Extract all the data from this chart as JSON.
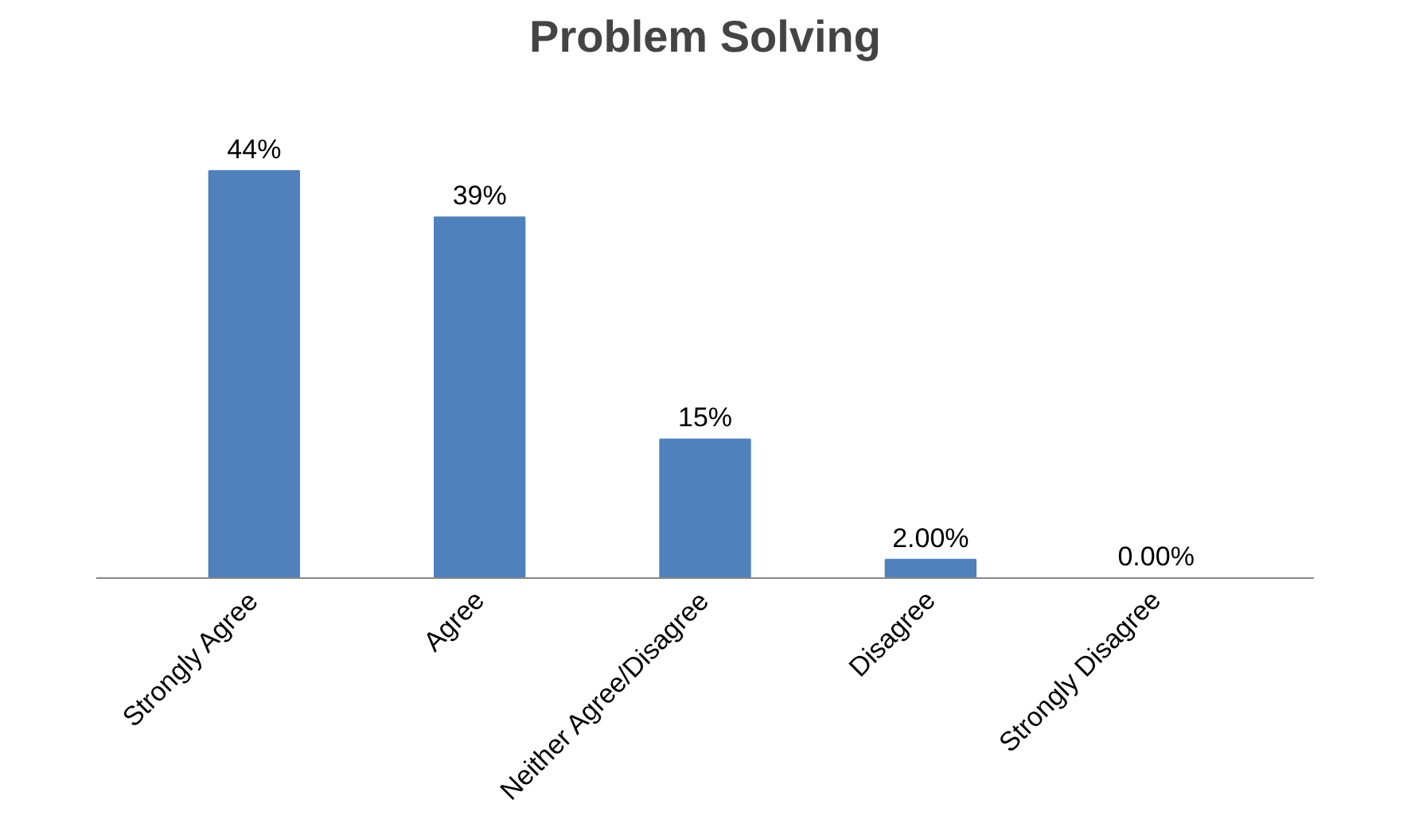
{
  "chart_data": {
    "type": "bar",
    "title": "Problem Solving",
    "categories": [
      "Strongly Agree",
      "Agree",
      "Neither Agree/Disagree",
      "Disagree",
      "Strongly Disagree"
    ],
    "values": [
      44,
      39,
      15,
      2,
      0
    ],
    "color": "#4f81bd",
    "value_labels": [
      "44%",
      "39%",
      "15%",
      "2.00%",
      "0.00%"
    ]
  }
}
